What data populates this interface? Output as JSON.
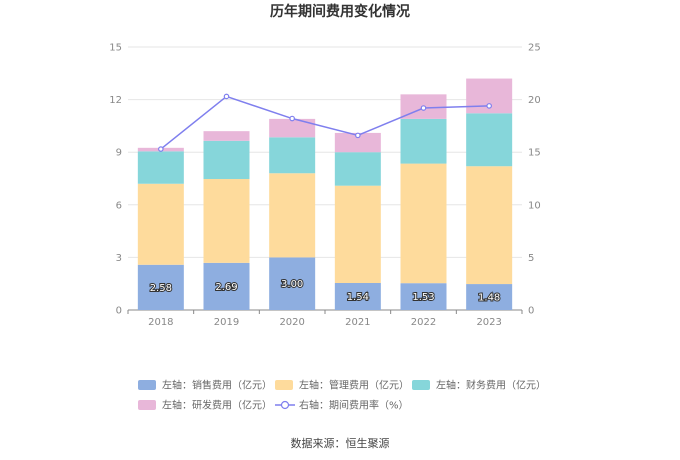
{
  "chart_data": {
    "type": "bar",
    "title": "历年期间费用变化情况",
    "categories": [
      "2018",
      "2019",
      "2020",
      "2021",
      "2022",
      "2023"
    ],
    "series": [
      {
        "name": "左轴：销售费用（亿元）",
        "axis": "left",
        "type": "bar",
        "color": "#8eaee0",
        "values": [
          2.58,
          2.69,
          3.0,
          1.54,
          1.53,
          1.48
        ],
        "labels": [
          "2.58",
          "2.69",
          "3.00",
          "1.54",
          "1.53",
          "1.48"
        ]
      },
      {
        "name": "左轴：管理费用（亿元）",
        "axis": "left",
        "type": "bar",
        "color": "#fedb9c",
        "values": [
          4.62,
          4.78,
          4.8,
          5.55,
          6.82,
          6.72
        ]
      },
      {
        "name": "左轴：财务费用（亿元）",
        "axis": "left",
        "type": "bar",
        "color": "#86d6da",
        "values": [
          1.85,
          2.18,
          2.05,
          1.91,
          2.55,
          3.02
        ]
      },
      {
        "name": "左轴：研发费用（亿元）",
        "axis": "left",
        "type": "bar",
        "color": "#e8b7d9",
        "values": [
          0.2,
          0.55,
          1.05,
          1.1,
          1.4,
          1.98
        ]
      },
      {
        "name": "右轴：期间费用率（%）",
        "axis": "right",
        "type": "line",
        "color": "#7f7fee",
        "values": [
          15.3,
          20.3,
          18.2,
          16.6,
          19.2,
          19.4
        ]
      }
    ],
    "y_left": {
      "min": 0,
      "max": 15,
      "ticks": [
        0,
        3,
        6,
        9,
        12,
        15
      ]
    },
    "y_right": {
      "min": 0,
      "max": 25,
      "ticks": [
        0,
        5,
        10,
        15,
        20,
        25
      ]
    },
    "grid": true,
    "legend_position": "bottom",
    "source": "数据来源：恒生聚源"
  }
}
